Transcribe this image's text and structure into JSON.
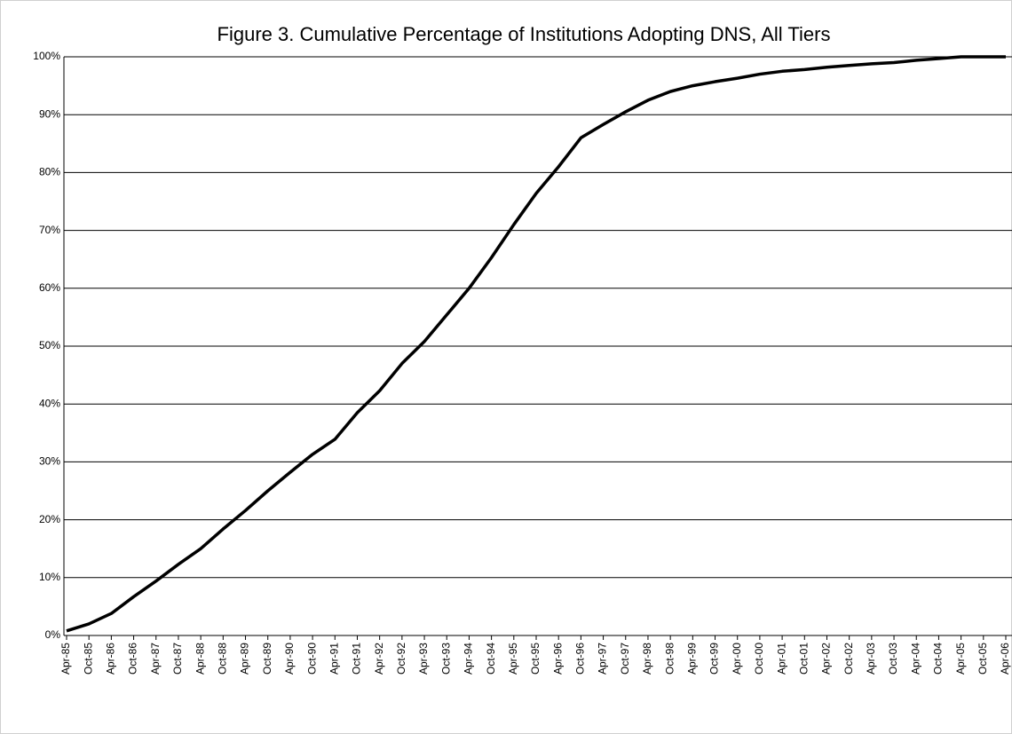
{
  "chart_data": {
    "type": "line",
    "title": "Figure 3. Cumulative Percentage of Institutions Adopting DNS, All Tiers",
    "categories": [
      "Apr-85",
      "Oct-85",
      "Apr-86",
      "Oct-86",
      "Apr-87",
      "Oct-87",
      "Apr-88",
      "Oct-88",
      "Apr-89",
      "Oct-89",
      "Apr-90",
      "Oct-90",
      "Apr-91",
      "Oct-91",
      "Apr-92",
      "Oct-92",
      "Apr-93",
      "Oct-93",
      "Apr-94",
      "Oct-94",
      "Apr-95",
      "Oct-95",
      "Apr-96",
      "Oct-96",
      "Apr-97",
      "Oct-97",
      "Apr-98",
      "Oct-98",
      "Apr-99",
      "Oct-99",
      "Apr-00",
      "Oct-00",
      "Apr-01",
      "Oct-01",
      "Apr-02",
      "Oct-02",
      "Apr-03",
      "Oct-03",
      "Apr-04",
      "Oct-04",
      "Apr-05",
      "Oct-05",
      "Apr-06"
    ],
    "values": [
      0.8,
      2,
      3.8,
      6.7,
      9.4,
      12.3,
      15,
      18.4,
      21.6,
      25,
      28.2,
      31.3,
      33.9,
      38.5,
      42.3,
      47,
      50.8,
      55.4,
      60,
      65.3,
      71,
      76.4,
      81,
      86,
      88.3,
      90.5,
      92.5,
      94,
      95,
      95.7,
      96.3,
      97,
      97.5,
      97.8,
      98.2,
      98.5,
      98.8,
      99,
      99.4,
      99.7,
      100,
      100,
      100
    ],
    "color": "#000000",
    "ylim": [
      0,
      100
    ],
    "yticks": [
      {
        "value": 0,
        "label": "0%"
      },
      {
        "value": 10,
        "label": "10%"
      },
      {
        "value": 20,
        "label": "20%"
      },
      {
        "value": 30,
        "label": "30%"
      },
      {
        "value": 40,
        "label": "40%"
      },
      {
        "value": 50,
        "label": "50%"
      },
      {
        "value": 60,
        "label": "60%"
      },
      {
        "value": 70,
        "label": "70%"
      },
      {
        "value": 80,
        "label": "80%"
      },
      {
        "value": 90,
        "label": "90%"
      },
      {
        "value": 100,
        "label": "100%"
      }
    ],
    "grid": true
  }
}
